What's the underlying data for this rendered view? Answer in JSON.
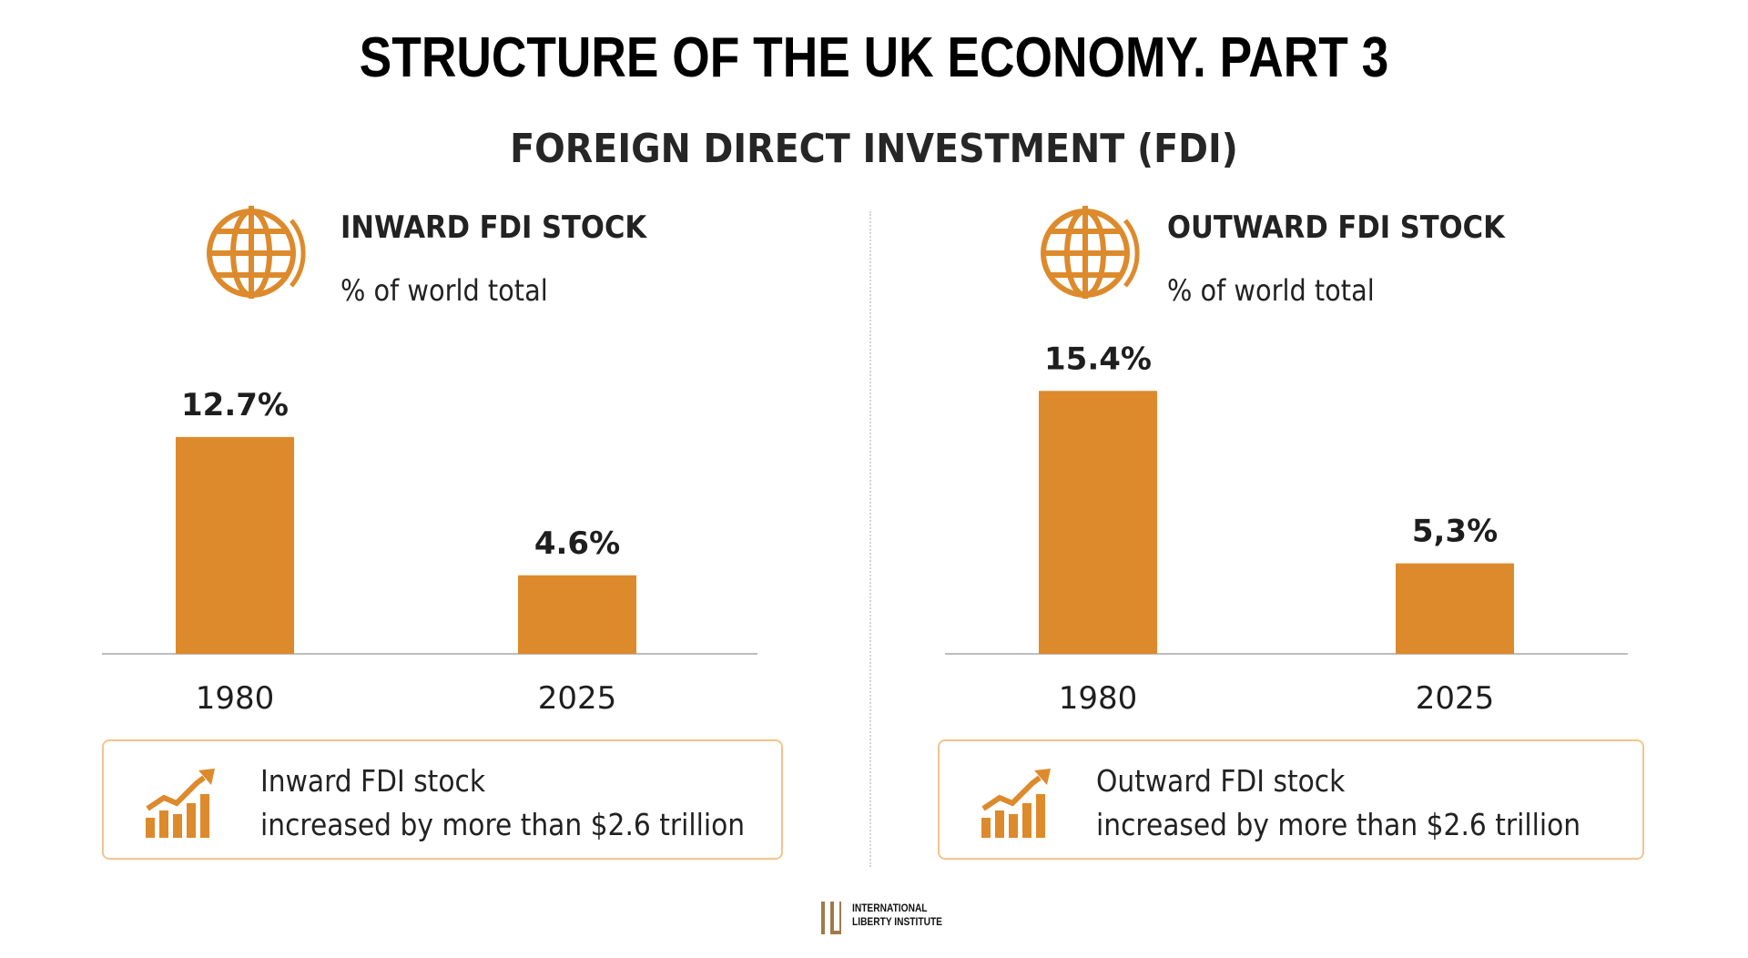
{
  "title": "STRUCTURE OF THE UK ECONOMY. PART 3",
  "subtitle": "FOREIGN DIRECT INVESTMENT (FDI)",
  "colors": {
    "bar": "#dd8a2c",
    "accent_border": "#f3c48e",
    "axis": "#bdbdbd"
  },
  "panels": [
    {
      "heading": "INWARD FDI STOCK",
      "unit": "% of world total",
      "icon": "globe-icon",
      "callout": {
        "icon": "growth-chart-icon",
        "line1": "Inward FDI stock",
        "line2": "increased by more than $2.6 trillion"
      }
    },
    {
      "heading": "OUTWARD FDI STOCK",
      "unit": "% of world total",
      "icon": "globe-icon",
      "callout": {
        "icon": "growth-chart-icon",
        "line1": "Outward FDI stock",
        "line2": "increased by more than $2.6 trillion"
      }
    }
  ],
  "chart_data": [
    {
      "type": "bar",
      "title": "INWARD FDI STOCK",
      "ylabel": "% of world total",
      "categories": [
        "1980",
        "2025"
      ],
      "values": [
        12.7,
        4.6
      ],
      "value_labels": [
        "12.7%",
        "4.6%"
      ],
      "ylim": [
        0,
        16
      ],
      "grid": false
    },
    {
      "type": "bar",
      "title": "OUTWARD FDI STOCK",
      "ylabel": "% of world total",
      "categories": [
        "1980",
        "2025"
      ],
      "values": [
        15.4,
        5.3
      ],
      "value_labels": [
        "15.4%",
        "5,3%"
      ],
      "ylim": [
        0,
        16
      ],
      "grid": false
    }
  ],
  "logo": {
    "line1": "INTERNATIONAL",
    "line2": "LIBERTY INSTITUTE"
  }
}
